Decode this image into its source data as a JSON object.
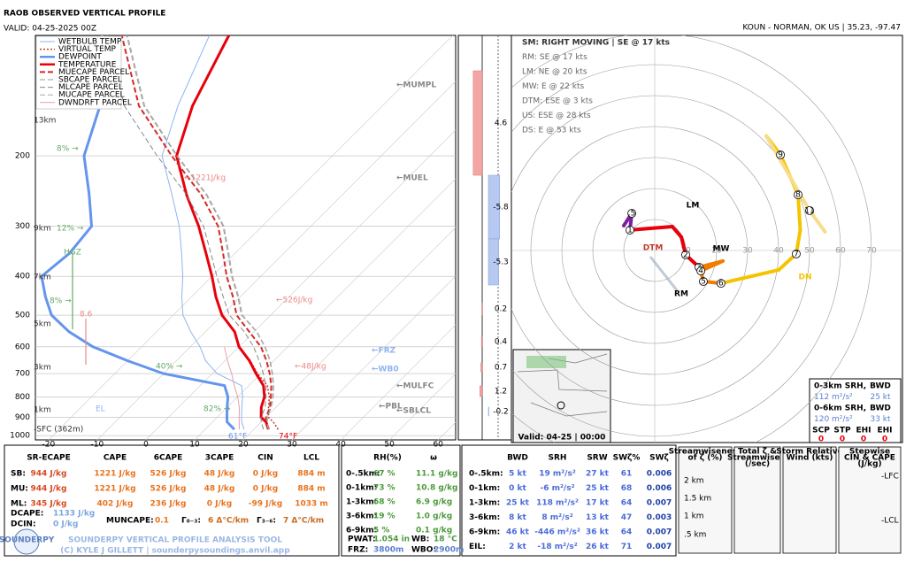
{
  "header": {
    "title": "RAOB OBSERVED VERTICAL PROFILE",
    "valid": "VALID: 04-25-2025 00Z",
    "station": "KOUN - NORMAN, OK US | 35.23, -97.47"
  },
  "skewt": {
    "type": "line",
    "log_y": true,
    "grid": true,
    "ylim": [
      1025,
      100
    ],
    "yticks": [
      200,
      300,
      400,
      500,
      600,
      700,
      800,
      900,
      1000
    ],
    "xlim": [
      -22.7,
      63.6
    ],
    "xticks": [
      -20,
      -10,
      0,
      10,
      20,
      30,
      40,
      50,
      60
    ],
    "pressure": [
      965,
      925,
      900,
      850,
      800,
      750,
      700,
      650,
      600,
      550,
      500,
      450,
      400,
      350,
      300,
      250,
      200,
      150,
      100
    ],
    "series": [
      {
        "name": "WETBULB TEMP",
        "color": "#8fb4f2",
        "style": "solid",
        "width": 1,
        "values": [
          18,
          16,
          15,
          13,
          11,
          8.5,
          1,
          -4,
          -8,
          -13,
          -18,
          -22,
          -26,
          -31,
          -37,
          -45,
          -55,
          -62,
          -70
        ]
      },
      {
        "name": "VIRTUAL TEMP",
        "color": "#c0392b",
        "style": "dotted",
        "width": 1.5,
        "values": [
          25,
          22.5,
          20.5,
          18.5,
          16.5,
          13.8,
          9.3,
          5.2,
          0.1,
          -4,
          -10,
          -15,
          -20,
          -26,
          -33,
          -42,
          -52,
          -59,
          -66
        ]
      },
      {
        "name": "DEWPOINT",
        "color": "#6495ed",
        "style": "solid",
        "width": 3,
        "values": [
          16,
          13,
          12,
          10,
          8,
          5,
          -10,
          -20,
          -30,
          -38,
          -45,
          -50,
          -55,
          -54,
          -55,
          -62,
          -71,
          -78,
          -92
        ]
      },
      {
        "name": "TEMPERATURE",
        "color": "#e8000b",
        "style": "solid",
        "width": 3,
        "values": [
          23,
          21,
          19,
          17,
          15.5,
          13,
          9,
          5,
          0,
          -4,
          -10,
          -15,
          -20,
          -26,
          -33,
          -42,
          -52,
          -59,
          -66
        ]
      },
      {
        "name": "MUECAPE PARCEL",
        "color": "#d62828",
        "style": "dashed",
        "width": 2,
        "values": [
          23,
          21,
          20,
          18.8,
          16.8,
          14.6,
          11.8,
          8.5,
          4.5,
          -1,
          -7,
          -11.5,
          -17,
          -22.5,
          -29,
          -39,
          -53,
          -70,
          -88
        ]
      },
      {
        "name": "SBCAPE PARCEL",
        "color": "#999999",
        "style": "dashed",
        "width": 1,
        "values": [
          23,
          21.2,
          20.2,
          19,
          17.2,
          15,
          12.3,
          9.2,
          5.3,
          0.5,
          -6,
          -10.5,
          -16,
          -21.5,
          -28,
          -38,
          -52,
          -69,
          -87
        ]
      },
      {
        "name": "MLCAPE PARCEL",
        "color": "#888888",
        "style": "dashed",
        "width": 1,
        "values": [
          22,
          20,
          19,
          17.8,
          15.8,
          13.5,
          10.5,
          7,
          3,
          -2,
          -8.5,
          -13.5,
          -19,
          -25,
          -32,
          -42,
          -56,
          -73,
          -91
        ]
      },
      {
        "name": "MUCAPE PARCEL",
        "color": "#aaaaaa",
        "style": "dashed",
        "width": 1,
        "values": [
          23,
          21.3,
          20.3,
          19.1,
          17.3,
          15.1,
          12.4,
          9.3,
          5.4,
          0.6,
          -5.8,
          -10.3,
          -15.8,
          -21.3,
          -27.8,
          -37.8,
          -51.8,
          -68.8,
          -86.8
        ]
      },
      {
        "name": "DWNDRFT PARCEL",
        "color": "#e8a0a8",
        "style": "solid",
        "width": 1,
        "values": [
          17,
          15.5,
          14.5,
          12.5,
          10,
          7,
          4,
          0.5,
          -3,
          null,
          null,
          null,
          null,
          null,
          null,
          null,
          null,
          null,
          null
        ]
      }
    ],
    "annotations": [
      "←MUMPL",
      "←MUEL",
      "←MULFC",
      "←SBLCL",
      "←FRZ",
      "←WB0",
      "←PBL",
      "←1221J/kg",
      "←526J/kg",
      "←48J/kg",
      "8% →",
      "12% →",
      "HGZ",
      "8% →",
      "40% →",
      "82% →",
      "8.6",
      "61°F",
      "74°F",
      "13km",
      "9km",
      "7km",
      "5km",
      "3km",
      "1km",
      "-SFC (362m)",
      "EL"
    ]
  },
  "omega_strip": {
    "values": [
      4.6,
      -5.8,
      -5.3,
      0.2,
      0.4,
      0.7,
      1.2,
      -0.2
    ]
  },
  "hodograph": {
    "rings": [
      10,
      20,
      30,
      40,
      50,
      60,
      70
    ],
    "points": [
      {
        "u": -10,
        "v": 8,
        "color": "#7b1fa2"
      },
      {
        "u": -7.4,
        "v": 12,
        "color": "#7b1fa2",
        "label": ".5"
      },
      {
        "u": -8,
        "v": 6.6,
        "color": "#7b1fa2",
        "label": "1"
      },
      {
        "u": 5.7,
        "v": 7.7,
        "color": "#e8000b"
      },
      {
        "u": 8.6,
        "v": 4.3,
        "color": "#e8000b"
      },
      {
        "u": 10,
        "v": -1.4,
        "color": "#e8000b",
        "label": "2"
      },
      {
        "u": 14.3,
        "v": -5.4,
        "color": "#e8000b",
        "label": "3"
      },
      {
        "u": 22,
        "v": -3.4,
        "color": "#f07d00"
      },
      {
        "u": 14.9,
        "v": -6.6,
        "color": "#f07d00",
        "label": "4"
      },
      {
        "u": 15.7,
        "v": -10,
        "color": "#f07d00",
        "label": "5"
      },
      {
        "u": 21.4,
        "v": -10.6,
        "color": "#f07d00",
        "label": "6"
      },
      {
        "u": 40,
        "v": -6.3,
        "color": "#f5c400"
      },
      {
        "u": 45.7,
        "v": -1.1,
        "color": "#f5c400",
        "label": "7"
      },
      {
        "u": 47,
        "v": 6.6,
        "color": "#f5c400"
      },
      {
        "u": 46.3,
        "v": 18,
        "color": "#f5c400",
        "label": "8"
      },
      {
        "u": 40.6,
        "v": 30.9,
        "color": "#f5c400",
        "label": "9"
      },
      {
        "u": 36,
        "v": 37,
        "color": "#f5c400"
      },
      {
        "u": 50,
        "v": 12.9,
        "color": "#f7dd8a",
        "label": "11"
      },
      {
        "u": 55,
        "v": 6,
        "color": "#f7dd8a"
      }
    ],
    "markers": [
      "LM",
      "MW",
      "RM",
      "DTM",
      "DN"
    ],
    "storm_motion": [
      "SM: RIGHT MOVING | SE @ 17 kts",
      "RM: SE @ 17 kts",
      "LM: NE @ 20 kts",
      "MW: E @ 22 kts",
      "DTM: ESE @ 3 kts",
      "US: ESE @ 28 kts",
      "DS: E @ 53 kts"
    ]
  },
  "map_inset": {
    "valid": "Valid: 04-25 | 00:00"
  },
  "hodo_box": {
    "rows": [
      [
        "0-3km SRH,",
        "BWD"
      ],
      [
        "112 m²/s²",
        "25 kt"
      ],
      [
        "0-6km SRH,",
        "BWD"
      ],
      [
        "120 m²/s²",
        "33 kt"
      ]
    ],
    "indices": [
      "SCP",
      "STP",
      "EHI",
      "EHI"
    ],
    "index_values": [
      "0",
      "0",
      "0",
      "0"
    ]
  },
  "thermo_table": {
    "columns": [
      "SR-ECAPE",
      "CAPE",
      "6CAPE",
      "3CAPE",
      "CIN",
      "LCL"
    ],
    "rows": [
      {
        "label": "SB:",
        "cells": [
          "944 J/kg",
          "1221 J/kg",
          "526 J/kg",
          "48 J/kg",
          "0 J/kg",
          "884 m"
        ]
      },
      {
        "label": "MU:",
        "cells": [
          "944 J/kg",
          "1221 J/kg",
          "526 J/kg",
          "48 J/kg",
          "0 J/kg",
          "884 m"
        ]
      },
      {
        "label": "ML:",
        "cells": [
          "345 J/kg",
          "402 J/kg",
          "236 J/kg",
          "0 J/kg",
          "-99 J/kg",
          "1033 m"
        ]
      }
    ],
    "extra": [
      [
        "DCAPE:",
        "1133 J/kg"
      ],
      [
        "DCIN:",
        "0 J/kg"
      ],
      [
        "MUNCAPE:",
        "0.1"
      ],
      [
        "Γ₀₋₃:",
        "6 Δ°C/km"
      ],
      [
        "Γ₃₋₆:",
        "7 Δ°C/km"
      ]
    ]
  },
  "moisture_table": {
    "columns": [
      "RH(%)",
      "ω"
    ],
    "rows": [
      {
        "label": "0-.5km:",
        "cells": [
          "67 %",
          "11.1 g/kg"
        ]
      },
      {
        "label": "0-1km:",
        "cells": [
          "73 %",
          "10.8 g/kg"
        ]
      },
      {
        "label": "1-3km:",
        "cells": [
          "68 %",
          "6.9 g/kg"
        ]
      },
      {
        "label": "3-6km:",
        "cells": [
          "19 %",
          "1.0 g/kg"
        ]
      },
      {
        "label": "6-9km:",
        "cells": [
          "5 %",
          "0.1 g/kg"
        ]
      }
    ],
    "footer": [
      [
        "PWAT:",
        "1.054 in",
        "WB:",
        "18 °C"
      ],
      [
        "FRZ:",
        "3800m",
        "WBO:",
        "2900m"
      ]
    ]
  },
  "kinematic_table": {
    "columns": [
      "BWD",
      "SRH",
      "SRW",
      "SWζ%",
      "SWζ"
    ],
    "rows": [
      {
        "label": "0-.5km:",
        "cells": [
          "5 kt",
          "19 m²/s²",
          "27 kt",
          "61",
          "0.006"
        ]
      },
      {
        "label": "0-1km:",
        "cells": [
          "0 kt",
          "-6 m²/s²",
          "25 kt",
          "68",
          "0.006"
        ]
      },
      {
        "label": "1-3km:",
        "cells": [
          "25 kt",
          "118 m²/s²",
          "17 kt",
          "64",
          "0.007"
        ]
      },
      {
        "label": "3-6km:",
        "cells": [
          "8 kt",
          "8 m²/s²",
          "13 kt",
          "47",
          "0.003"
        ]
      },
      {
        "label": "6-9km:",
        "cells": [
          "46 kt",
          "-446 m²/s²",
          "36 kt",
          "64",
          "0.007"
        ]
      },
      {
        "label": "EIL:",
        "cells": [
          "2 kt",
          "-18 m²/s²",
          "26 kt",
          "71",
          "0.007"
        ]
      }
    ]
  },
  "panels": [
    {
      "title_lines": [
        "Streamwiseness",
        "of ζ (%)"
      ],
      "labels": [
        "2 km",
        "1.5 km",
        "1 km",
        ".5 km"
      ]
    },
    {
      "title_lines": [
        "Total ζ &",
        "Streamwise ζ",
        "(/sec)"
      ],
      "labels": []
    },
    {
      "title_lines": [
        "Storm Relative",
        "Wind (kts)"
      ],
      "labels": []
    },
    {
      "title_lines": [
        "Stepwise",
        "CIN & CAPE",
        "(J/kg)"
      ],
      "labels": [
        "-LFC",
        "-LCL"
      ]
    }
  ],
  "footer": {
    "logo": "SOUNDERPY",
    "title": "SOUNDERPY VERTICAL PROFILE ANALYSIS TOOL",
    "credit": "(C) KYLE J GILLETT | sounderpysoundings.anvil.app"
  }
}
